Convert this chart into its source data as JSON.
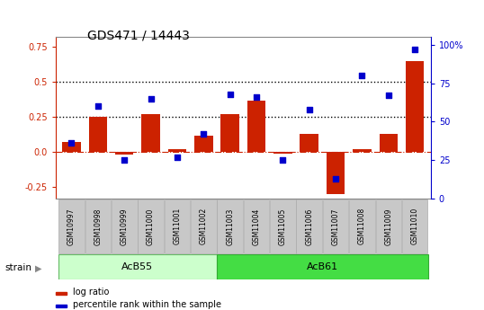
{
  "title": "GDS471 / 14443",
  "samples": [
    "GSM10997",
    "GSM10998",
    "GSM10999",
    "GSM11000",
    "GSM11001",
    "GSM11002",
    "GSM11003",
    "GSM11004",
    "GSM11005",
    "GSM11006",
    "GSM11007",
    "GSM11008",
    "GSM11009",
    "GSM11010"
  ],
  "log_ratio": [
    0.07,
    0.25,
    -0.02,
    0.27,
    0.02,
    0.12,
    0.27,
    0.37,
    -0.01,
    0.13,
    -0.3,
    0.02,
    0.13,
    0.65
  ],
  "percentile": [
    36,
    60,
    25,
    65,
    27,
    42,
    68,
    66,
    25,
    58,
    13,
    80,
    67,
    97
  ],
  "group1_label": "AcB55",
  "group1_count": 6,
  "group2_label": "AcB61",
  "group2_count": 8,
  "strain_label": "strain",
  "ylim_left": [
    -0.33,
    0.82
  ],
  "ylim_right": [
    0,
    105
  ],
  "hline1": 0.5,
  "hline2": 0.25,
  "hline0": 0.0,
  "bar_color": "#cc2200",
  "dot_color": "#0000cc",
  "bg_color_group1": "#ccffcc",
  "bg_color_group2": "#44dd44",
  "tick_label_bg": "#c8c8c8",
  "dotted_line_color": "#000000",
  "zero_line_color": "#cc2200",
  "title_color": "#000000",
  "left_axis_color": "#cc2200",
  "right_axis_color": "#0000cc",
  "left_ticks": [
    -0.25,
    0.0,
    0.25,
    0.5,
    0.75
  ],
  "right_ticks": [
    0,
    25,
    50,
    75,
    100
  ]
}
